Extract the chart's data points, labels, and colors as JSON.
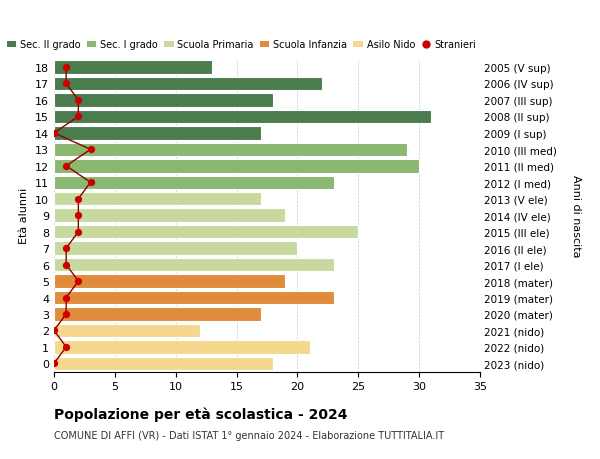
{
  "ages": [
    0,
    1,
    2,
    3,
    4,
    5,
    6,
    7,
    8,
    9,
    10,
    11,
    12,
    13,
    14,
    15,
    16,
    17,
    18
  ],
  "right_labels": [
    "2023 (nido)",
    "2022 (nido)",
    "2021 (nido)",
    "2020 (mater)",
    "2019 (mater)",
    "2018 (mater)",
    "2017 (I ele)",
    "2016 (II ele)",
    "2015 (III ele)",
    "2014 (IV ele)",
    "2013 (V ele)",
    "2012 (I med)",
    "2011 (II med)",
    "2010 (III med)",
    "2009 (I sup)",
    "2008 (II sup)",
    "2007 (III sup)",
    "2006 (IV sup)",
    "2005 (V sup)"
  ],
  "bar_values": [
    18,
    21,
    12,
    17,
    23,
    19,
    23,
    20,
    25,
    19,
    17,
    23,
    30,
    29,
    17,
    31,
    18,
    22,
    13
  ],
  "bar_colors": [
    "#f5d78e",
    "#f5d78e",
    "#f5d78e",
    "#e08c3c",
    "#e08c3c",
    "#e08c3c",
    "#c8d9a0",
    "#c8d9a0",
    "#c8d9a0",
    "#c8d9a0",
    "#c8d9a0",
    "#8ab870",
    "#8ab870",
    "#8ab870",
    "#4a7c4e",
    "#4a7c4e",
    "#4a7c4e",
    "#4a7c4e",
    "#4a7c4e"
  ],
  "stranieri_values": [
    0,
    1,
    0,
    1,
    1,
    2,
    1,
    1,
    2,
    2,
    2,
    3,
    1,
    3,
    0,
    2,
    2,
    1,
    1
  ],
  "title": "Popolazione per età scolastica - 2024",
  "subtitle": "COMUNE DI AFFI (VR) - Dati ISTAT 1° gennaio 2024 - Elaborazione TUTTITALIA.IT",
  "ylabel": "Età alunni",
  "ylabel2": "Anni di nascita",
  "xlim": [
    0,
    35
  ],
  "xticks": [
    0,
    5,
    10,
    15,
    20,
    25,
    30,
    35
  ],
  "legend_labels": [
    "Sec. II grado",
    "Sec. I grado",
    "Scuola Primaria",
    "Scuola Infanzia",
    "Asilo Nido",
    "Stranieri"
  ],
  "legend_colors": [
    "#4a7c4e",
    "#8ab870",
    "#c8d9a0",
    "#e08c3c",
    "#f5d78e",
    "#cc0000"
  ],
  "background_color": "#ffffff",
  "grid_color": "#cccccc"
}
